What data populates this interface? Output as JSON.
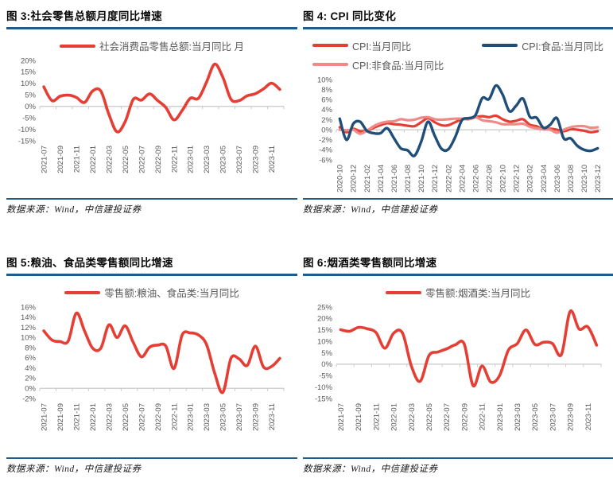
{
  "page": {
    "rule_color": "#1f5c8b",
    "axis_text_color": "#595959",
    "axis_line_color": "#c9c9c9",
    "source_note": "数据来源：Wind，中信建投证券"
  },
  "panels": [
    {
      "title": "图 3:社会零售总额月度同比增速",
      "source": "数据来源：Wind，中信建投证券"
    },
    {
      "title": "图 4: CPI 同比变化",
      "source": "数据来源：Wind，中信建投证券"
    },
    {
      "title": "图 5:粮油、食品类零售额同比增速",
      "source": "数据来源：Wind，中信建投证券"
    },
    {
      "title": "图 6:烟酒类零售额同比增速",
      "source": "数据来源：Wind，中信建投证券"
    }
  ],
  "chart_data": [
    {
      "type": "line",
      "title": "图 3:社会零售总额月度同比增速",
      "x": [
        "2021-07",
        "2021-08",
        "2021-09",
        "2021-10",
        "2021-11",
        "2021-12",
        "2022-01",
        "2022-02",
        "2022-03",
        "2022-04",
        "2022-05",
        "2022-06",
        "2022-07",
        "2022-08",
        "2022-09",
        "2022-10",
        "2022-11",
        "2022-12",
        "2023-01",
        "2023-02",
        "2023-03",
        "2023-04",
        "2023-05",
        "2023-06",
        "2023-07",
        "2023-08",
        "2023-09",
        "2023-10",
        "2023-11",
        "2023-12"
      ],
      "xtick_every": 2,
      "ylim": [
        -15,
        20
      ],
      "ytick_step": 5,
      "y_format": "percent",
      "grid": false,
      "legend_position": "top",
      "legend_columns": 1,
      "series": [
        {
          "name": "社会消费品零售总额:当月同比 月",
          "color": "#e53e35",
          "width": 3.6,
          "values": [
            8.5,
            2.5,
            4.4,
            4.9,
            3.9,
            1.7,
            6.7,
            6.7,
            -3.5,
            -11.1,
            -6.7,
            3.1,
            2.7,
            5.4,
            2.5,
            -0.5,
            -5.9,
            -1.8,
            3.5,
            3.5,
            10.6,
            18.4,
            12.7,
            3.1,
            2.5,
            4.6,
            5.5,
            7.6,
            10.1,
            7.4
          ]
        }
      ]
    },
    {
      "type": "line",
      "title": "图 4: CPI 同比变化",
      "x": [
        "2020-10",
        "2020-11",
        "2020-12",
        "2021-01",
        "2021-02",
        "2021-03",
        "2021-04",
        "2021-05",
        "2021-06",
        "2021-07",
        "2021-08",
        "2021-09",
        "2021-10",
        "2021-11",
        "2021-12",
        "2022-01",
        "2022-02",
        "2022-03",
        "2022-04",
        "2022-05",
        "2022-06",
        "2022-07",
        "2022-08",
        "2022-09",
        "2022-10",
        "2022-11",
        "2022-12",
        "2023-01",
        "2023-02",
        "2023-03",
        "2023-04",
        "2023-05",
        "2023-06",
        "2023-07",
        "2023-08",
        "2023-09",
        "2023-10",
        "2023-11",
        "2023-12"
      ],
      "xtick_every": 2,
      "ylim": [
        -6,
        10
      ],
      "ytick_step": 2,
      "y_format": "percent",
      "grid": false,
      "legend_position": "top",
      "legend_columns": 2,
      "series": [
        {
          "name": "CPI:当月同比",
          "color": "#e53e35",
          "width": 3.2,
          "values": [
            0.5,
            -0.5,
            0.2,
            -0.3,
            -0.2,
            0.4,
            0.9,
            1.3,
            1.1,
            1.0,
            0.8,
            0.7,
            1.5,
            2.3,
            1.5,
            0.9,
            0.9,
            1.5,
            2.1,
            2.1,
            2.5,
            2.7,
            2.5,
            2.8,
            2.1,
            1.6,
            1.8,
            2.1,
            1.0,
            0.7,
            0.1,
            0.2,
            0.0,
            -0.3,
            0.1,
            0.0,
            -0.2,
            -0.5,
            -0.3
          ]
        },
        {
          "name": "CPI:非食品:当月同比",
          "color": "#ef8a87",
          "width": 3.2,
          "values": [
            0.0,
            -0.1,
            0.0,
            -0.8,
            -0.2,
            0.7,
            1.3,
            1.6,
            1.7,
            2.1,
            1.9,
            2.0,
            2.4,
            2.5,
            2.1,
            2.0,
            2.1,
            2.2,
            2.2,
            2.1,
            2.5,
            1.9,
            1.7,
            1.5,
            1.1,
            1.1,
            1.1,
            1.2,
            0.6,
            0.3,
            0.1,
            0.0,
            -0.6,
            0.0,
            0.5,
            0.7,
            0.7,
            0.4,
            0.5
          ]
        },
        {
          "name": "CPI:食品:当月同比",
          "color": "#1f4e79",
          "width": 3.4,
          "values": [
            2.2,
            -2.0,
            1.2,
            1.6,
            -0.2,
            -0.7,
            -0.7,
            0.3,
            -1.7,
            -3.7,
            -4.1,
            -5.2,
            -2.4,
            1.6,
            -1.2,
            -3.8,
            -3.9,
            -1.5,
            1.9,
            2.3,
            2.9,
            6.3,
            6.1,
            8.8,
            7.0,
            3.7,
            4.8,
            6.2,
            2.6,
            2.4,
            0.4,
            1.0,
            2.3,
            -1.7,
            -1.7,
            -3.2,
            -4.0,
            -4.2,
            -3.7
          ]
        }
      ],
      "legend_order": [
        "CPI:当月同比",
        "CPI:食品:当月同比",
        "CPI:非食品:当月同比"
      ]
    },
    {
      "type": "line",
      "title": "图 5:粮油、食品类零售额同比增速",
      "x": [
        "2021-07",
        "2021-08",
        "2021-09",
        "2021-10",
        "2021-11",
        "2021-12",
        "2022-01",
        "2022-02",
        "2022-03",
        "2022-04",
        "2022-05",
        "2022-06",
        "2022-07",
        "2022-08",
        "2022-09",
        "2022-10",
        "2022-11",
        "2022-12",
        "2023-01",
        "2023-02",
        "2023-03",
        "2023-04",
        "2023-05",
        "2023-06",
        "2023-07",
        "2023-08",
        "2023-09",
        "2023-10",
        "2023-11",
        "2023-12"
      ],
      "xtick_every": 2,
      "ylim": [
        -2,
        16
      ],
      "ytick_step": 2,
      "y_format": "percent",
      "grid": false,
      "legend_position": "top",
      "legend_columns": 1,
      "series": [
        {
          "name": "零售额:粮油、食品类:当月同比",
          "color": "#e53e35",
          "width": 3.6,
          "values": [
            11.3,
            9.5,
            9.2,
            9.3,
            14.8,
            11.3,
            7.9,
            7.9,
            12.5,
            10.0,
            12.3,
            9.0,
            6.2,
            8.1,
            8.5,
            8.3,
            3.9,
            10.5,
            10.9,
            10.5,
            8.6,
            3.0,
            -0.8,
            5.9,
            5.8,
            4.5,
            8.3,
            4.2,
            4.3,
            5.9
          ]
        }
      ]
    },
    {
      "type": "line",
      "title": "图 6:烟酒类零售额同比增速",
      "x": [
        "2021-07",
        "2021-08",
        "2021-09",
        "2021-10",
        "2021-11",
        "2021-12",
        "2022-01",
        "2022-02",
        "2022-03",
        "2022-04",
        "2022-05",
        "2022-06",
        "2022-07",
        "2022-08",
        "2022-09",
        "2022-10",
        "2022-11",
        "2022-12",
        "2023-01",
        "2023-02",
        "2023-03",
        "2023-04",
        "2023-05",
        "2023-06",
        "2023-07",
        "2023-08",
        "2023-09",
        "2023-10",
        "2023-11",
        "2023-12"
      ],
      "xtick_every": 2,
      "ylim": [
        -15,
        25
      ],
      "ytick_step": 5,
      "y_format": "percent",
      "grid": false,
      "legend_position": "top",
      "legend_columns": 1,
      "series": [
        {
          "name": "零售额:烟酒类:当月同比",
          "color": "#e53e35",
          "width": 3.6,
          "values": [
            15.1,
            14.4,
            16.1,
            15.5,
            13.8,
            7.0,
            13.6,
            13.6,
            -0.7,
            -7.5,
            3.8,
            5.3,
            6.7,
            8.5,
            8.8,
            -9.4,
            -0.8,
            -7.8,
            -5.0,
            6.1,
            9.0,
            15.0,
            8.6,
            9.6,
            9.0,
            4.2,
            23.1,
            15.4,
            16.3,
            8.3
          ]
        }
      ]
    }
  ]
}
